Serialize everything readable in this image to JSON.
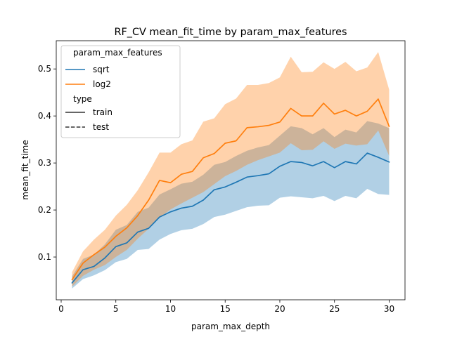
{
  "chart_data": {
    "type": "line",
    "title": "RF_CV mean_fit_time by param_max_features",
    "xlabel": "param_max_depth",
    "ylabel": "mean_fit_time",
    "xlim": [
      -0.45,
      31.45
    ],
    "ylim": [
      0.009,
      0.56
    ],
    "xticks": [
      0,
      5,
      10,
      15,
      20,
      25,
      30
    ],
    "yticks": [
      0.1,
      0.2,
      0.3,
      0.4,
      0.5
    ],
    "ytick_labels": [
      "0.1",
      "0.2",
      "0.3",
      "0.4",
      "0.5"
    ],
    "grid": false,
    "legend": {
      "placement": "top-left",
      "hue_title": "param_max_features",
      "style_title": "type",
      "entries": [
        {
          "label": "sqrt",
          "color": "#1f77b4",
          "dash": "solid"
        },
        {
          "label": "log2",
          "color": "#ff7f0e",
          "dash": "solid"
        }
      ],
      "style_entries": [
        {
          "label": "train",
          "dash": "solid"
        },
        {
          "label": "test",
          "dash": "dashed"
        }
      ]
    },
    "x": [
      1,
      2,
      3,
      4,
      5,
      6,
      7,
      8,
      9,
      10,
      11,
      12,
      13,
      14,
      15,
      16,
      17,
      18,
      19,
      20,
      21,
      22,
      23,
      24,
      25,
      26,
      27,
      28,
      29,
      30
    ],
    "series": [
      {
        "name": "sqrt",
        "color": "#1f77b4",
        "values": [
          0.045,
          0.073,
          0.08,
          0.098,
          0.122,
          0.13,
          0.153,
          0.161,
          0.185,
          0.196,
          0.204,
          0.208,
          0.221,
          0.243,
          0.249,
          0.259,
          0.27,
          0.273,
          0.277,
          0.293,
          0.303,
          0.301,
          0.294,
          0.303,
          0.29,
          0.303,
          0.298,
          0.321,
          0.312,
          0.302
        ],
        "lower": [
          0.033,
          0.053,
          0.061,
          0.072,
          0.089,
          0.096,
          0.115,
          0.117,
          0.137,
          0.149,
          0.157,
          0.16,
          0.17,
          0.185,
          0.19,
          0.198,
          0.206,
          0.209,
          0.21,
          0.226,
          0.229,
          0.227,
          0.225,
          0.23,
          0.219,
          0.23,
          0.225,
          0.245,
          0.234,
          0.232
        ],
        "upper": [
          0.059,
          0.096,
          0.105,
          0.127,
          0.158,
          0.168,
          0.196,
          0.205,
          0.233,
          0.244,
          0.256,
          0.26,
          0.275,
          0.296,
          0.302,
          0.315,
          0.326,
          0.333,
          0.338,
          0.358,
          0.378,
          0.374,
          0.361,
          0.374,
          0.355,
          0.371,
          0.365,
          0.389,
          0.384,
          0.374
        ]
      },
      {
        "name": "log2",
        "color": "#ff7f0e",
        "values": [
          0.052,
          0.087,
          0.105,
          0.121,
          0.144,
          0.162,
          0.188,
          0.221,
          0.263,
          0.258,
          0.276,
          0.282,
          0.311,
          0.32,
          0.342,
          0.347,
          0.375,
          0.377,
          0.38,
          0.387,
          0.416,
          0.4,
          0.4,
          0.427,
          0.404,
          0.412,
          0.4,
          0.41,
          0.436,
          0.378
        ],
        "lower": [
          0.037,
          0.06,
          0.073,
          0.083,
          0.1,
          0.115,
          0.139,
          0.16,
          0.184,
          0.201,
          0.214,
          0.226,
          0.238,
          0.255,
          0.272,
          0.283,
          0.296,
          0.306,
          0.314,
          0.322,
          0.342,
          0.327,
          0.328,
          0.346,
          0.33,
          0.341,
          0.337,
          0.34,
          0.369,
          0.315
        ],
        "upper": [
          0.068,
          0.112,
          0.137,
          0.158,
          0.188,
          0.211,
          0.242,
          0.28,
          0.322,
          0.322,
          0.34,
          0.348,
          0.388,
          0.395,
          0.425,
          0.437,
          0.466,
          0.466,
          0.47,
          0.482,
          0.526,
          0.493,
          0.494,
          0.514,
          0.5,
          0.515,
          0.495,
          0.503,
          0.536,
          0.456
        ]
      }
    ]
  }
}
